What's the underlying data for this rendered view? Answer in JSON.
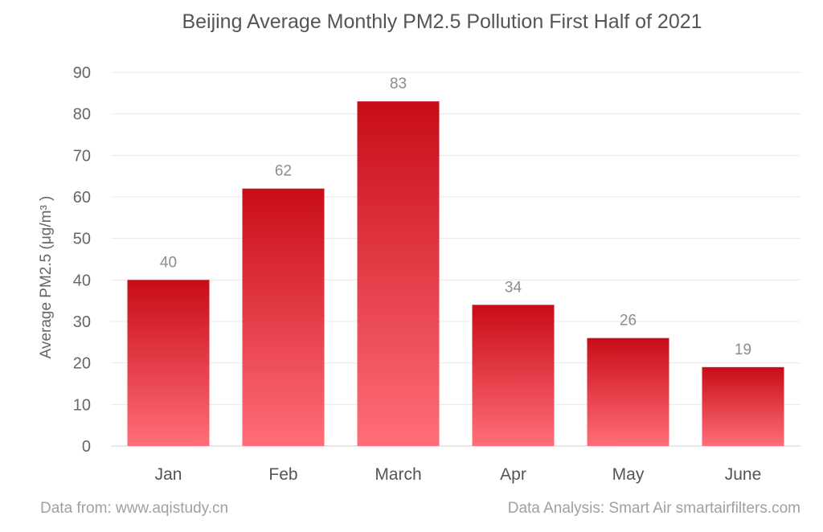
{
  "chart_data": {
    "type": "bar",
    "title": "Beijing Average Monthly PM2.5 Pollution First Half of 2021",
    "ylabel": "Average PM2.5 (μg/m³ )",
    "xlabel": "",
    "categories": [
      "Jan",
      "Feb",
      "March",
      "Apr",
      "May",
      "June"
    ],
    "values": [
      40,
      62,
      83,
      34,
      26,
      19
    ],
    "data_labels": [
      "40",
      "62",
      "83",
      "34",
      "26",
      "19"
    ],
    "ylim": [
      0,
      90
    ],
    "yticks": [
      0,
      10,
      20,
      30,
      40,
      50,
      60,
      70,
      80,
      90
    ],
    "grid": true,
    "legend": "none",
    "colors": {
      "bar_top": "#c80c18",
      "bar_bottom": "#ff6e78"
    }
  },
  "footer": {
    "source": "Data from: www.aqistudy.cn",
    "analysis": "Data Analysis: Smart Air smartairfilters.com"
  }
}
